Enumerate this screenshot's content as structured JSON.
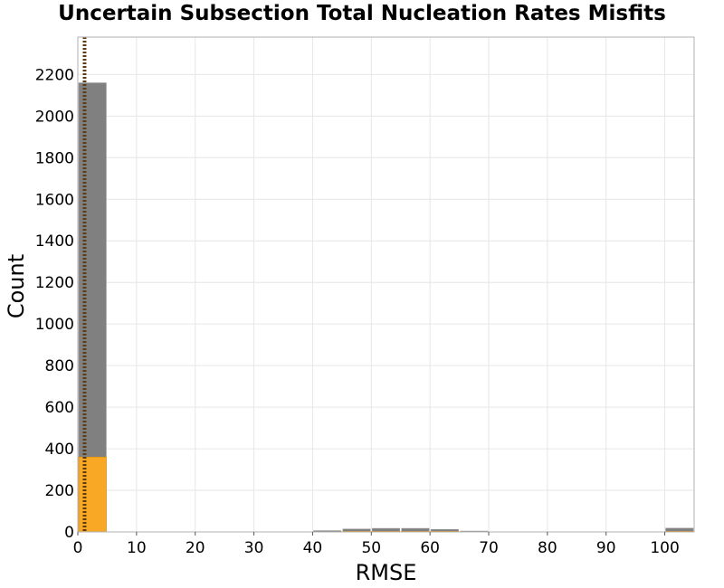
{
  "chart_data": {
    "type": "bar",
    "title": "Uncertain Subsection Total Nucleation Rates Misfits",
    "xlabel": "RMSE",
    "ylabel": "Count",
    "xlim": [
      0,
      105
    ],
    "ylim": [
      0,
      2380
    ],
    "xticks": [
      0,
      10,
      20,
      30,
      40,
      50,
      60,
      70,
      80,
      90,
      100
    ],
    "yticks": [
      0,
      200,
      400,
      600,
      800,
      1000,
      1200,
      1400,
      1600,
      1800,
      2000,
      2200
    ],
    "grid": true,
    "bin_width": 5,
    "series": [
      {
        "color": "#808080",
        "bins": [
          {
            "x0": 0,
            "x1": 5,
            "value": 2160
          },
          {
            "x0": 40,
            "x1": 45,
            "value": 6
          },
          {
            "x0": 45,
            "x1": 50,
            "value": 14
          },
          {
            "x0": 50,
            "x1": 55,
            "value": 17
          },
          {
            "x0": 55,
            "x1": 60,
            "value": 17
          },
          {
            "x0": 60,
            "x1": 65,
            "value": 12
          },
          {
            "x0": 65,
            "x1": 70,
            "value": 4
          },
          {
            "x0": 100,
            "x1": 105,
            "value": 18
          }
        ]
      },
      {
        "color": "#f9a825",
        "bins": [
          {
            "x0": 0,
            "x1": 5,
            "value": 360
          },
          {
            "x0": 45,
            "x1": 50,
            "value": 3
          },
          {
            "x0": 50,
            "x1": 55,
            "value": 3
          },
          {
            "x0": 55,
            "x1": 60,
            "value": 3
          },
          {
            "x0": 60,
            "x1": 65,
            "value": 3
          },
          {
            "x0": 100,
            "x1": 105,
            "value": 3
          }
        ]
      }
    ],
    "reference_lines": [
      {
        "x": 1.0,
        "style": "dotted",
        "color": "#5a3a12"
      },
      {
        "x": 1.3,
        "style": "dotted",
        "color": "#5a3a12"
      }
    ]
  }
}
